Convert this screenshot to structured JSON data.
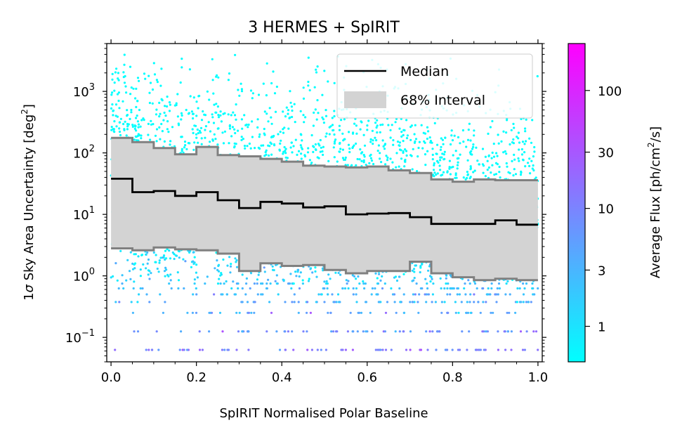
{
  "chart_data": {
    "type": "scatter",
    "title": "3 HERMES + SpIRIT",
    "xlabel": "SpIRIT Normalised Polar Baseline",
    "ylabel_prefix": "1",
    "ylabel_sigma": "σ",
    "ylabel_main": " Sky Area Uncertainty [deg",
    "ylabel_sup": "2",
    "ylabel_end": "]",
    "yscale": "log",
    "xlim": [
      -0.01,
      1.01
    ],
    "ylim": [
      0.04,
      6000
    ],
    "grid": false,
    "legend_position": "top-right",
    "x_ticks": [
      "0.0",
      "0.2",
      "0.4",
      "0.6",
      "0.8",
      "1.0"
    ],
    "y_ticks": [
      {
        "base": "10",
        "exp": "−1",
        "value": 0.1
      },
      {
        "base": "10",
        "exp": "0",
        "value": 1
      },
      {
        "base": "10",
        "exp": "1",
        "value": 10
      },
      {
        "base": "10",
        "exp": "2",
        "value": 100
      },
      {
        "base": "10",
        "exp": "3",
        "value": 1000
      }
    ],
    "legend": {
      "median": "Median",
      "interval": "68% Interval"
    },
    "colors": {
      "median": "#000000",
      "interval_edge": "#808080",
      "interval_fill": "#d3d3d3",
      "cmap_low": "#00ffff",
      "cmap_high": "#ff00ff"
    },
    "bin_edges": [
      0.0,
      0.05,
      0.1,
      0.15,
      0.2,
      0.25,
      0.3,
      0.35,
      0.4,
      0.45,
      0.5,
      0.55,
      0.6,
      0.65,
      0.7,
      0.75,
      0.8,
      0.85,
      0.9,
      0.95,
      1.0
    ],
    "median": [
      38,
      23,
      24,
      20,
      23,
      17,
      12.7,
      16,
      15,
      13,
      13.5,
      10,
      10.3,
      10.5,
      9,
      7,
      7,
      7,
      8,
      6.8
    ],
    "upper_68": [
      175,
      150,
      120,
      95,
      125,
      92,
      88,
      80,
      72,
      62,
      60,
      58,
      60,
      52,
      47,
      37,
      34,
      37,
      36,
      36
    ],
    "lower_68": [
      2.8,
      2.6,
      2.9,
      2.7,
      2.6,
      2.3,
      1.2,
      1.6,
      1.45,
      1.5,
      1.25,
      1.1,
      1.2,
      1.2,
      1.7,
      1.1,
      0.95,
      0.85,
      0.9,
      0.85
    ],
    "colorbar": {
      "label_main": "Average Flux [ph/cm",
      "label_sup": "2",
      "label_end": "/s]",
      "scale": "log",
      "range": [
        0.5,
        250
      ],
      "ticks": [
        "1",
        "3",
        "10",
        "30",
        "100"
      ],
      "tick_values": [
        1,
        3,
        10,
        30,
        100
      ]
    },
    "scatter_points_approx": 4000
  }
}
